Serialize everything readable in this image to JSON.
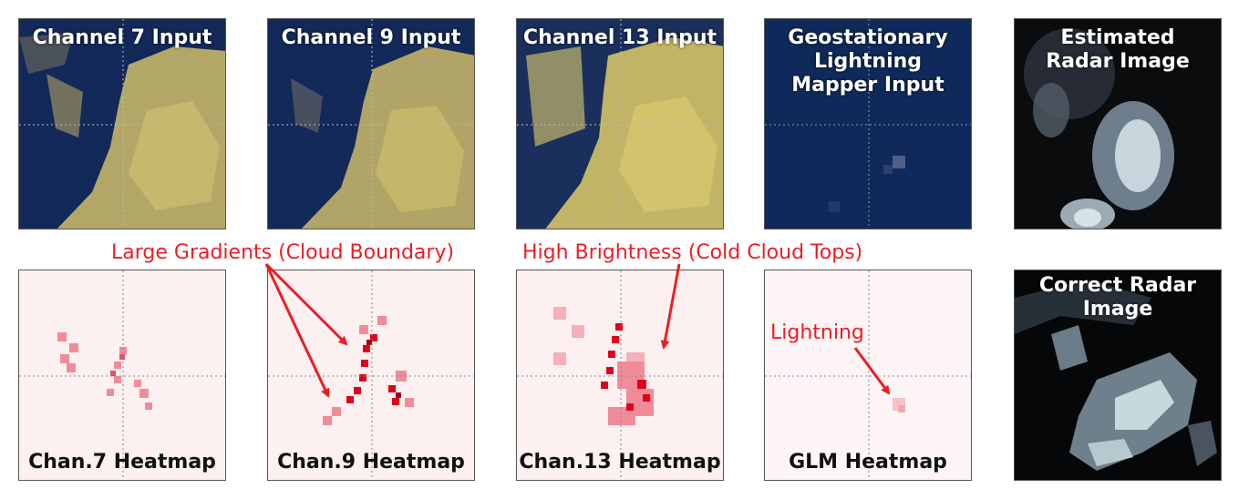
{
  "panels": {
    "ch7_input": "Channel 7 Input",
    "ch9_input": "Channel 9 Input",
    "ch13_input": "Channel 13 Input",
    "glm_input": "Geostationary Lightning Mapper Input",
    "estimated_radar": "Estimated Radar Image",
    "ch7_heatmap": "Chan.7 Heatmap",
    "ch9_heatmap": "Chan.9 Heatmap",
    "ch13_heatmap": "Chan.13 Heatmap",
    "glm_heatmap": "GLM Heatmap",
    "correct_radar": "Correct Radar Image"
  },
  "annotations": {
    "gradients": "Large Gradients (Cloud Boundary)",
    "brightness": "High Brightness (Cold Cloud Tops)",
    "lightning": "Lightning"
  },
  "colors": {
    "satellite_dark": "#13295a",
    "satellite_bright": "#c8b964",
    "radar_dark": "#050607",
    "radar_bright": "#dde8ee",
    "heatmap_red": "#e0001b",
    "annotation_red": "#ee1c25"
  }
}
